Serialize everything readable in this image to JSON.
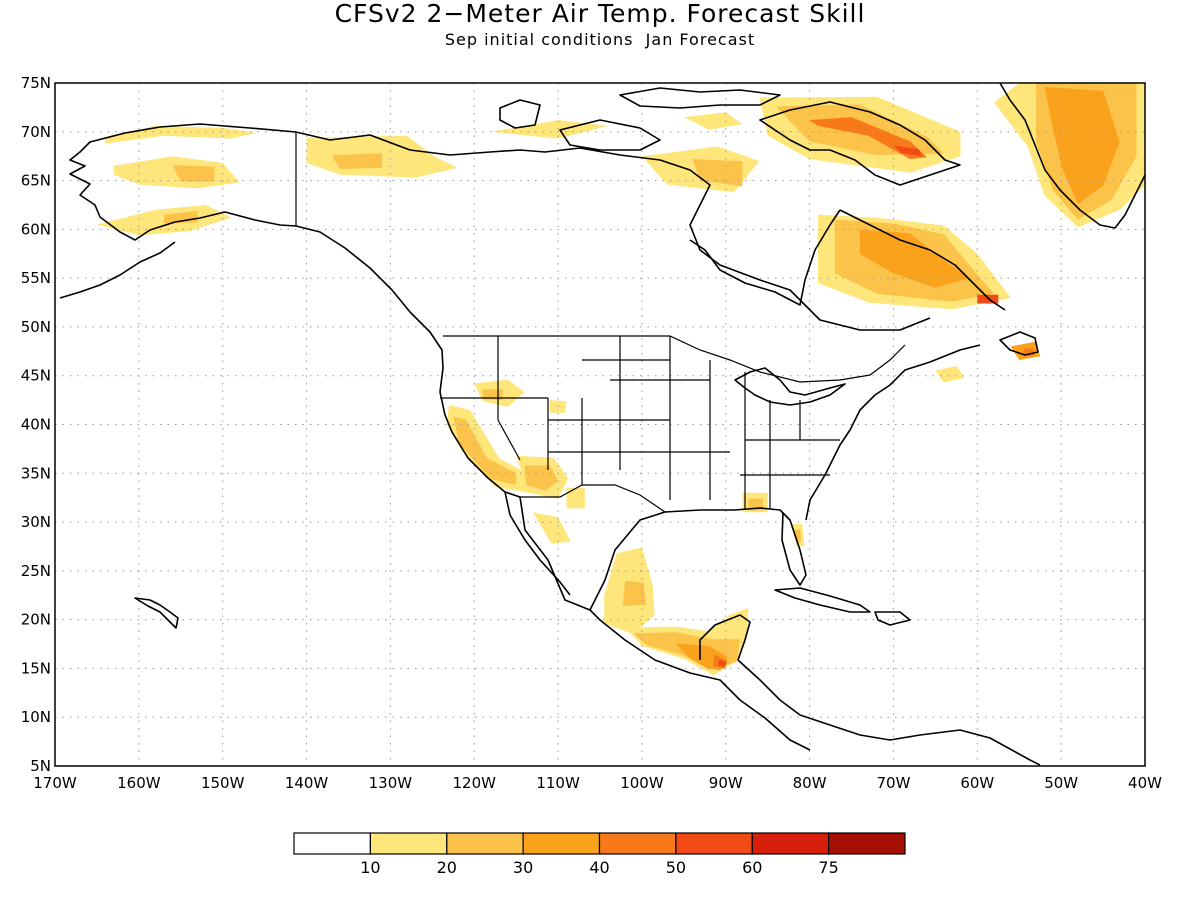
{
  "title": "CFSv2 2−Meter Air Temp. Forecast Skill",
  "subtitle": "Sep initial conditions  Jan Forecast",
  "map": {
    "lon_range": [
      -170,
      -40
    ],
    "lat_range": [
      5,
      75
    ],
    "lat_ticks": [
      {
        "value": 75,
        "label": "75N"
      },
      {
        "value": 70,
        "label": "70N"
      },
      {
        "value": 65,
        "label": "65N"
      },
      {
        "value": 60,
        "label": "60N"
      },
      {
        "value": 55,
        "label": "55N"
      },
      {
        "value": 50,
        "label": "50N"
      },
      {
        "value": 45,
        "label": "45N"
      },
      {
        "value": 40,
        "label": "40N"
      },
      {
        "value": 35,
        "label": "35N"
      },
      {
        "value": 30,
        "label": "30N"
      },
      {
        "value": 25,
        "label": "25N"
      },
      {
        "value": 20,
        "label": "20N"
      },
      {
        "value": 15,
        "label": "15N"
      },
      {
        "value": 10,
        "label": "10N"
      },
      {
        "value": 5,
        "label": "5N"
      }
    ],
    "lon_ticks": [
      {
        "value": -170,
        "label": "170W"
      },
      {
        "value": -160,
        "label": "160W"
      },
      {
        "value": -150,
        "label": "150W"
      },
      {
        "value": -140,
        "label": "140W"
      },
      {
        "value": -130,
        "label": "130W"
      },
      {
        "value": -120,
        "label": "120W"
      },
      {
        "value": -110,
        "label": "110W"
      },
      {
        "value": -100,
        "label": "100W"
      },
      {
        "value": -90,
        "label": "90W"
      },
      {
        "value": -80,
        "label": "80W"
      },
      {
        "value": -70,
        "label": "70W"
      },
      {
        "value": -60,
        "label": "60W"
      },
      {
        "value": -50,
        "label": "50W"
      },
      {
        "value": -40,
        "label": "40W"
      }
    ],
    "grid": "dotted"
  },
  "legend": {
    "orientation": "horizontal",
    "colors": [
      "#ffffff",
      "#fee67a",
      "#fcc34a",
      "#fba21c",
      "#f7791a",
      "#f24a14",
      "#d81f0c",
      "#a50f04"
    ],
    "labels": [
      "10",
      "20",
      "30",
      "40",
      "50",
      "60",
      "75"
    ]
  },
  "skill_regions": [
    {
      "name": "alaska-north-slope",
      "level": 1,
      "points": [
        [
          -164,
          69.5
        ],
        [
          -158,
          70.6
        ],
        [
          -150,
          70.4
        ],
        [
          -146,
          69.9
        ],
        [
          -149,
          69.3
        ],
        [
          -157,
          69.6
        ],
        [
          -164,
          68.8
        ]
      ]
    },
    {
      "name": "alaska-interior",
      "level": 1,
      "points": [
        [
          -163,
          66.5
        ],
        [
          -156,
          67.5
        ],
        [
          -150,
          66.8
        ],
        [
          -148,
          64.8
        ],
        [
          -153,
          64.2
        ],
        [
          -160,
          64.6
        ],
        [
          -163,
          65.6
        ]
      ]
    },
    {
      "name": "alaska-interior-core",
      "level": 2,
      "points": [
        [
          -156,
          66.6
        ],
        [
          -151,
          66.4
        ],
        [
          -151,
          64.9
        ],
        [
          -155,
          64.9
        ]
      ]
    },
    {
      "name": "alaska-southwest",
      "level": 1,
      "points": [
        [
          -165,
          60.5
        ],
        [
          -158,
          62
        ],
        [
          -152,
          62.5
        ],
        [
          -149,
          61.2
        ],
        [
          -154,
          59.8
        ],
        [
          -160,
          59.4
        ]
      ]
    },
    {
      "name": "alaska-south-core",
      "level": 2,
      "points": [
        [
          -157,
          61.5
        ],
        [
          -153,
          61.9
        ],
        [
          -153,
          60.7
        ],
        [
          -157,
          60.6
        ]
      ]
    },
    {
      "name": "yukon-north",
      "level": 1,
      "points": [
        [
          -140,
          69.4
        ],
        [
          -128,
          69.6
        ],
        [
          -125,
          67.6
        ],
        [
          -122,
          66.3
        ],
        [
          -127,
          65.3
        ],
        [
          -136,
          65.6
        ],
        [
          -140,
          66.8
        ]
      ]
    },
    {
      "name": "yukon-core",
      "level": 2,
      "points": [
        [
          -137,
          67.6
        ],
        [
          -131,
          67.8
        ],
        [
          -131,
          66.3
        ],
        [
          -136,
          66.2
        ]
      ]
    },
    {
      "name": "arctic-islands-west",
      "level": 1,
      "points": [
        [
          -118,
          70
        ],
        [
          -110,
          71.2
        ],
        [
          -104,
          70.6
        ],
        [
          -110,
          69.3
        ]
      ]
    },
    {
      "name": "nunavut-central",
      "level": 1,
      "points": [
        [
          -100,
          67.5
        ],
        [
          -91,
          68.5
        ],
        [
          -86,
          67
        ],
        [
          -89,
          63.8
        ],
        [
          -97,
          64.6
        ]
      ]
    },
    {
      "name": "nunavut-core",
      "level": 2,
      "points": [
        [
          -94,
          67.2
        ],
        [
          -88,
          67
        ],
        [
          -88,
          64.4
        ],
        [
          -93,
          65
        ]
      ]
    },
    {
      "name": "foxe-basin",
      "level": 1,
      "points": [
        [
          -95,
          71.5
        ],
        [
          -90,
          72
        ],
        [
          -88,
          70.8
        ],
        [
          -92,
          70.2
        ]
      ]
    },
    {
      "name": "baffin-island",
      "level": 1,
      "points": [
        [
          -86,
          73.5
        ],
        [
          -72,
          73.6
        ],
        [
          -62,
          70
        ],
        [
          -62,
          67.5
        ],
        [
          -68,
          65.8
        ],
        [
          -80,
          67.2
        ],
        [
          -85,
          69.6
        ]
      ]
    },
    {
      "name": "baffin-core",
      "level": 2,
      "points": [
        [
          -84,
          72.6
        ],
        [
          -74,
          72.8
        ],
        [
          -66,
          69.5
        ],
        [
          -64,
          67.8
        ],
        [
          -72,
          67.6
        ],
        [
          -80,
          69
        ]
      ]
    },
    {
      "name": "baffin-strip",
      "level": 4,
      "points": [
        [
          -80,
          71.2
        ],
        [
          -75,
          71.5
        ],
        [
          -68,
          69
        ],
        [
          -66,
          67.4
        ],
        [
          -68,
          67.2
        ],
        [
          -73,
          69.6
        ],
        [
          -79,
          70.6
        ]
      ]
    },
    {
      "name": "baffin-red",
      "level": 5,
      "points": [
        [
          -70,
          68.6
        ],
        [
          -67,
          68.2
        ],
        [
          -66.5,
          67.5
        ],
        [
          -69,
          67.8
        ]
      ]
    },
    {
      "name": "labrador-quebec",
      "level": 1,
      "points": [
        [
          -79,
          61.5
        ],
        [
          -72,
          61.2
        ],
        [
          -64,
          60.4
        ],
        [
          -60,
          57.5
        ],
        [
          -56,
          53
        ],
        [
          -63,
          51.8
        ],
        [
          -73,
          52.5
        ],
        [
          -79,
          54.5
        ],
        [
          -79,
          57.5
        ]
      ]
    },
    {
      "name": "quebec-core",
      "level": 2,
      "points": [
        [
          -77,
          61
        ],
        [
          -70,
          60.6
        ],
        [
          -64,
          59.5
        ],
        [
          -61,
          56.4
        ],
        [
          -58,
          53.4
        ],
        [
          -63,
          52.6
        ],
        [
          -72,
          53.4
        ],
        [
          -77,
          55.5
        ]
      ]
    },
    {
      "name": "quebec-inner",
      "level": 3,
      "points": [
        [
          -74,
          60
        ],
        [
          -68,
          59.6
        ],
        [
          -65,
          57.5
        ],
        [
          -61,
          55
        ],
        [
          -65,
          54
        ],
        [
          -70,
          55.5
        ],
        [
          -74,
          57.5
        ]
      ]
    },
    {
      "name": "labrador-red",
      "level": 5,
      "points": [
        [
          -60,
          53.3
        ],
        [
          -57.5,
          53.3
        ],
        [
          -57.5,
          52.4
        ],
        [
          -60,
          52.4
        ]
      ]
    },
    {
      "name": "newfoundland",
      "level": 3,
      "points": [
        [
          -56,
          48
        ],
        [
          -53,
          48.5
        ],
        [
          -52.5,
          47
        ],
        [
          -55,
          46.6
        ]
      ]
    },
    {
      "name": "newfoundland-red",
      "level": 4,
      "points": [
        [
          -54.5,
          47.8
        ],
        [
          -53.2,
          47.8
        ],
        [
          -53.2,
          47
        ],
        [
          -54.5,
          47
        ]
      ]
    },
    {
      "name": "nova-scotia",
      "level": 1,
      "points": [
        [
          -65,
          45.5
        ],
        [
          -62.5,
          46
        ],
        [
          -61.5,
          44.8
        ],
        [
          -64,
          44.3
        ]
      ]
    },
    {
      "name": "greenland",
      "level": 1,
      "points": [
        [
          -55,
          75
        ],
        [
          -40,
          75
        ],
        [
          -40,
          64.5
        ],
        [
          -43,
          62
        ],
        [
          -48,
          60.2
        ],
        [
          -52,
          63.5
        ],
        [
          -54,
          68.5
        ],
        [
          -58,
          73
        ]
      ]
    },
    {
      "name": "greenland-core",
      "level": 2,
      "points": [
        [
          -53,
          75
        ],
        [
          -41,
          75
        ],
        [
          -41,
          67.5
        ],
        [
          -44,
          63
        ],
        [
          -48,
          61
        ],
        [
          -51,
          64
        ],
        [
          -53,
          69
        ]
      ]
    },
    {
      "name": "greenland-inner",
      "level": 3,
      "points": [
        [
          -52,
          74.6
        ],
        [
          -45,
          74.2
        ],
        [
          -43,
          69
        ],
        [
          -45,
          64.5
        ],
        [
          -48,
          62.6
        ],
        [
          -50,
          66.5
        ],
        [
          -51,
          70.5
        ]
      ]
    },
    {
      "name": "oregon-idaho",
      "level": 1,
      "points": [
        [
          -120,
          44.2
        ],
        [
          -116,
          44.6
        ],
        [
          -114,
          43.3
        ],
        [
          -116,
          41.8
        ],
        [
          -119,
          42.4
        ]
      ]
    },
    {
      "name": "oregon-idaho-core",
      "level": 2,
      "points": [
        [
          -119,
          43.6
        ],
        [
          -116.6,
          43.6
        ],
        [
          -116.6,
          42.5
        ],
        [
          -119,
          42.6
        ]
      ]
    },
    {
      "name": "wyoming",
      "level": 1,
      "points": [
        [
          -111,
          42.5
        ],
        [
          -109,
          42.4
        ],
        [
          -109.2,
          41.2
        ],
        [
          -111,
          41.2
        ]
      ]
    },
    {
      "name": "california",
      "level": 1,
      "points": [
        [
          -123,
          42
        ],
        [
          -120.5,
          41.5
        ],
        [
          -117,
          36.5
        ],
        [
          -113,
          34.7
        ],
        [
          -113.5,
          33
        ],
        [
          -117.5,
          33.6
        ],
        [
          -121.5,
          37.3
        ],
        [
          -123.3,
          40
        ]
      ]
    },
    {
      "name": "california-core",
      "level": 2,
      "points": [
        [
          -122.5,
          40.8
        ],
        [
          -121,
          40.5
        ],
        [
          -118.5,
          36.6
        ],
        [
          -115,
          35
        ],
        [
          -115,
          33.8
        ],
        [
          -118,
          34.4
        ],
        [
          -121.8,
          38
        ]
      ]
    },
    {
      "name": "arizona",
      "level": 1,
      "points": [
        [
          -115,
          36.8
        ],
        [
          -110.5,
          36.6
        ],
        [
          -108.8,
          34.5
        ],
        [
          -110,
          32.4
        ],
        [
          -113.5,
          33
        ]
      ]
    },
    {
      "name": "arizona-core",
      "level": 2,
      "points": [
        [
          -114,
          35.8
        ],
        [
          -111,
          35.8
        ],
        [
          -110,
          34.2
        ],
        [
          -111.5,
          33.2
        ],
        [
          -113.8,
          33.8
        ]
      ]
    },
    {
      "name": "new-mexico",
      "level": 1,
      "points": [
        [
          -109,
          33.5
        ],
        [
          -106.8,
          33.5
        ],
        [
          -106.8,
          31.4
        ],
        [
          -109,
          31.4
        ]
      ]
    },
    {
      "name": "sonora",
      "level": 1,
      "points": [
        [
          -113,
          31
        ],
        [
          -110,
          30.5
        ],
        [
          -108.5,
          28
        ],
        [
          -110.8,
          27.8
        ]
      ]
    },
    {
      "name": "mexico-plateau",
      "level": 1,
      "points": [
        [
          -103,
          26.8
        ],
        [
          -100,
          27.4
        ],
        [
          -98.7,
          23.5
        ],
        [
          -98.5,
          20.5
        ],
        [
          -101,
          18.5
        ],
        [
          -104.5,
          19.6
        ],
        [
          -104.5,
          22.5
        ]
      ]
    },
    {
      "name": "mexico-plateau-core",
      "level": 2,
      "points": [
        [
          -102,
          24
        ],
        [
          -99.8,
          23.8
        ],
        [
          -99.5,
          21.5
        ],
        [
          -102.3,
          21.4
        ]
      ]
    },
    {
      "name": "southern-mexico",
      "level": 1,
      "points": [
        [
          -102,
          19.2
        ],
        [
          -96,
          19.3
        ],
        [
          -92,
          18.8
        ],
        [
          -89.5,
          20.5
        ],
        [
          -87.3,
          21.2
        ],
        [
          -87.5,
          18.2
        ],
        [
          -88.5,
          15.8
        ],
        [
          -91.5,
          14.3
        ],
        [
          -95,
          16
        ],
        [
          -100,
          17.3
        ]
      ]
    },
    {
      "name": "southern-mexico-core",
      "level": 2,
      "points": [
        [
          -101,
          18.6
        ],
        [
          -96,
          18.7
        ],
        [
          -91.5,
          18
        ],
        [
          -88.3,
          18
        ],
        [
          -88.7,
          15.7
        ],
        [
          -91.8,
          14.8
        ],
        [
          -95,
          16.3
        ],
        [
          -99.5,
          17.4
        ]
      ]
    },
    {
      "name": "guatemala",
      "level": 3,
      "points": [
        [
          -96,
          17.6
        ],
        [
          -92,
          17.3
        ],
        [
          -89.8,
          16.2
        ],
        [
          -90.6,
          14.8
        ],
        [
          -92.4,
          15.1
        ],
        [
          -94.5,
          16.2
        ]
      ]
    },
    {
      "name": "guatemala-core",
      "level": 4,
      "points": [
        [
          -91.4,
          16.4
        ],
        [
          -89.8,
          15.8
        ],
        [
          -90.1,
          15
        ],
        [
          -91.5,
          15.2
        ]
      ]
    },
    {
      "name": "guatemala-red",
      "level": 5,
      "points": [
        [
          -90.8,
          15.9
        ],
        [
          -89.9,
          15.6
        ],
        [
          -90.1,
          15.2
        ],
        [
          -90.9,
          15.3
        ]
      ]
    },
    {
      "name": "alabama",
      "level": 1,
      "points": [
        [
          -88,
          33
        ],
        [
          -85,
          33
        ],
        [
          -85,
          31
        ],
        [
          -88,
          31
        ]
      ]
    },
    {
      "name": "alabama-core",
      "level": 2,
      "points": [
        [
          -87.3,
          32.4
        ],
        [
          -85.6,
          32.4
        ],
        [
          -85.6,
          31.2
        ],
        [
          -87.3,
          31.2
        ]
      ]
    },
    {
      "name": "florida",
      "level": 1,
      "points": [
        [
          -82.2,
          29.8
        ],
        [
          -80.9,
          29.8
        ],
        [
          -80.6,
          27.5
        ],
        [
          -81.6,
          27.6
        ]
      ]
    },
    {
      "name": "florida-core",
      "level": 2,
      "points": [
        [
          -81.8,
          29.2
        ],
        [
          -81.1,
          29.2
        ],
        [
          -81,
          28
        ],
        [
          -81.6,
          28
        ]
      ]
    }
  ]
}
